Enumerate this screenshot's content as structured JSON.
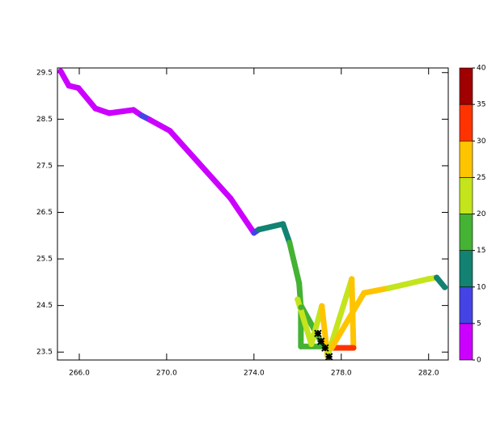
{
  "chart_data": {
    "type": "scatter",
    "xlim": [
      265.0,
      282.9
    ],
    "ylim": [
      23.33,
      29.6
    ],
    "xticks": [
      {
        "value": 266,
        "label": "266.0"
      },
      {
        "value": 270,
        "label": "270.0"
      },
      {
        "value": 274,
        "label": "274.0"
      },
      {
        "value": 278,
        "label": "278.0"
      },
      {
        "value": 282,
        "label": "282.0"
      }
    ],
    "yticks": [
      23.5,
      24.5,
      25.5,
      26.5,
      27.5,
      28.5,
      29.5
    ],
    "series": [
      {
        "x": [
          265.15,
          265.52,
          265.96,
          266.74,
          267.37,
          268.48,
          268.85,
          269.22,
          270.15,
          272.93,
          274.0,
          274.22,
          275.33,
          275.63,
          276.07,
          276.15,
          276.15,
          277.19,
          276.0,
          276.63,
          277.11,
          277.37,
          278.48,
          278.56,
          277.56,
          279.04,
          280.15,
          282.0,
          282.37,
          282.74
        ],
        "values": [
          29.53,
          29.22,
          29.17,
          28.73,
          28.63,
          28.7,
          28.58,
          28.49,
          28.25,
          26.8,
          26.06,
          26.13,
          26.25,
          25.85,
          24.98,
          24.46,
          23.62,
          23.62,
          24.63,
          23.67,
          24.49,
          23.41,
          25.07,
          23.59,
          23.59,
          24.77,
          24.87,
          25.07,
          25.1,
          24.89
        ],
        "z": [
          2,
          2,
          2,
          2,
          3,
          3,
          6,
          3,
          3,
          4,
          8,
          12,
          13,
          16,
          17,
          17,
          17,
          18,
          22,
          22,
          25,
          23,
          28,
          30,
          29,
          26,
          22,
          21,
          14,
          13
        ]
      },
      {
        "color": "#000000",
        "x": [
          276.93,
          277.07,
          277.26,
          277.44
        ],
        "values": [
          23.9,
          23.73,
          23.59,
          23.4
        ]
      }
    ],
    "colorbar": {
      "levels": [
        0,
        5,
        10,
        15,
        20,
        25,
        30,
        35,
        40
      ],
      "colors": [
        "#cc00ff",
        "#4444e6",
        "#128272",
        "#44b233",
        "#c4e41c",
        "#ffc400",
        "#ff3300",
        "#a00000"
      ]
    }
  }
}
